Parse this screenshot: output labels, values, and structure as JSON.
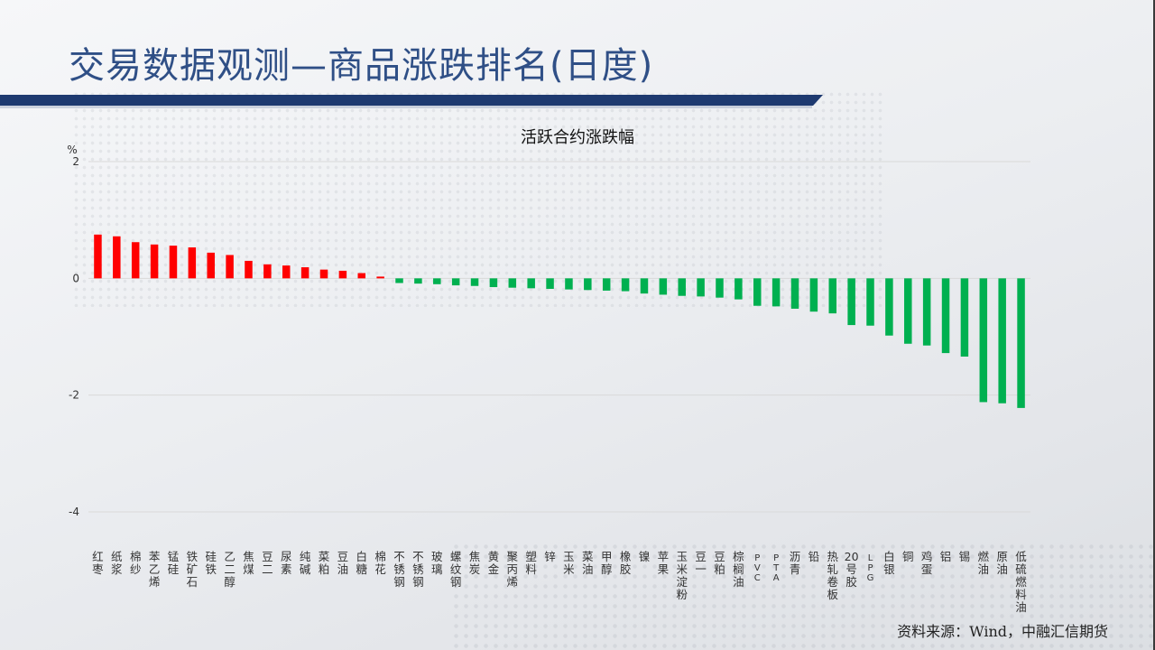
{
  "slide": {
    "title": "交易数据观测—商品涨跌排名(日度)",
    "source": "资料来源：Wind，中融汇信期货"
  },
  "chart_data": {
    "type": "bar",
    "title": "活跃合约涨跌幅",
    "ylabel": "%",
    "ylim": [
      -4,
      2
    ],
    "yticks": [
      2,
      0,
      -2,
      -4
    ],
    "grid": true,
    "colors": {
      "positive": "#ff0000",
      "negative": "#00b050",
      "axis": "#d9d9d9",
      "text": "#333333"
    },
    "categories": [
      "红枣",
      "纸浆",
      "棉纱",
      "苯乙烯",
      "锰硅",
      "铁矿石",
      "硅铁",
      "乙二醇",
      "焦煤",
      "豆二",
      "尿素",
      "纯碱",
      "菜粕",
      "豆油",
      "白糖",
      "棉花",
      "不锈钢",
      "不锈钢",
      "玻璃",
      "螺纹钢",
      "焦炭",
      "黄金",
      "聚丙烯",
      "塑料",
      "锌",
      "玉米",
      "菜油",
      "甲醇",
      "橡胶",
      "镍",
      "苹果",
      "玉米淀粉",
      "豆一",
      "豆粕",
      "棕榈油",
      "PVC",
      "PTA",
      "沥青",
      "铅",
      "热轧卷板",
      "20号胶",
      "LPG",
      "白银",
      "铜",
      "鸡蛋",
      "铝",
      "锡",
      "燃油",
      "原油",
      "低硫燃料油"
    ],
    "values": [
      0.75,
      0.72,
      0.62,
      0.58,
      0.56,
      0.53,
      0.44,
      0.4,
      0.3,
      0.24,
      0.22,
      0.19,
      0.15,
      0.13,
      0.09,
      0.03,
      -0.08,
      -0.09,
      -0.1,
      -0.12,
      -0.13,
      -0.15,
      -0.16,
      -0.17,
      -0.18,
      -0.19,
      -0.2,
      -0.21,
      -0.22,
      -0.26,
      -0.28,
      -0.3,
      -0.31,
      -0.33,
      -0.36,
      -0.47,
      -0.48,
      -0.52,
      -0.57,
      -0.6,
      -0.8,
      -0.81,
      -0.98,
      -1.12,
      -1.15,
      -1.28,
      -1.34,
      -2.12,
      -2.14,
      -2.22
    ]
  }
}
